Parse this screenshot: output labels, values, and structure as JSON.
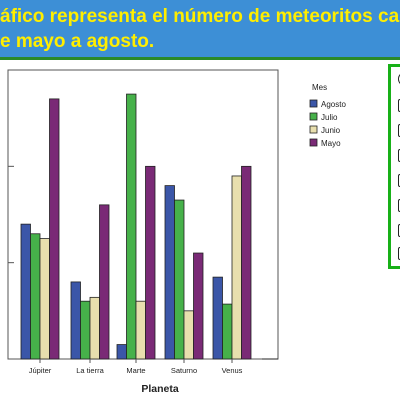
{
  "banner": {
    "line1": "áfico representa el número de meteoritos caído",
    "line2": "e mayo a agosto."
  },
  "chart_data": {
    "type": "bar",
    "categories": [
      "Júpiter",
      "La tierra",
      "Marte",
      "Saturno",
      "Venus"
    ],
    "xlabel": "Planeta",
    "ylabel": "",
    "legend_title": "Mes",
    "legend_position": "right",
    "series": [
      {
        "name": "Agosto",
        "color": "#3b56a8",
        "values": [
          14,
          8,
          1.5,
          18,
          8.5
        ]
      },
      {
        "name": "Julio",
        "color": "#46b14a",
        "values": [
          13,
          6,
          27.5,
          16.5,
          5.7
        ]
      },
      {
        "name": "Junio",
        "color": "#e8dfae",
        "values": [
          12.5,
          6.4,
          6,
          5,
          19
        ]
      },
      {
        "name": "Mayo",
        "color": "#7a2a76",
        "values": [
          27,
          16,
          20,
          11,
          20
        ]
      }
    ],
    "ylim": [
      0,
      30
    ],
    "grid": false
  },
  "colors": {
    "banner_bg": "#3d8fd6",
    "banner_text": "#ffee00",
    "panel_border": "#18b018",
    "divider": "#2a8a2a"
  }
}
